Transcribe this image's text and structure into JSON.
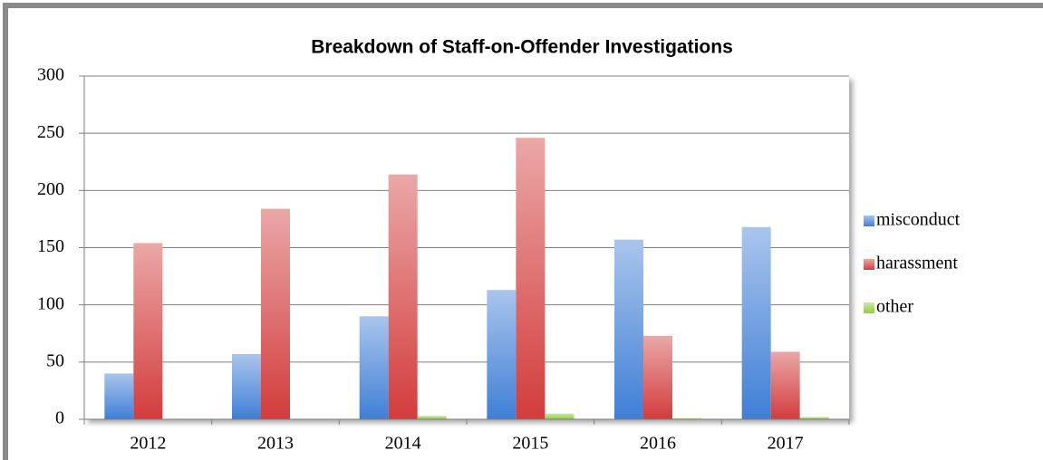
{
  "chart_data": {
    "type": "bar",
    "title": "Breakdown of Staff-on-Offender Investigations",
    "categories": [
      "2012",
      "2013",
      "2014",
      "2015",
      "2016",
      "2017"
    ],
    "series": [
      {
        "name": "misconduct",
        "color": "#3f7fd6",
        "values": [
          40,
          57,
          90,
          113,
          157,
          168
        ]
      },
      {
        "name": "harassment",
        "color": "#d33c3c",
        "values": [
          154,
          184,
          214,
          246,
          73,
          59
        ]
      },
      {
        "name": "other",
        "color": "#8fcf3a",
        "values": [
          0,
          0,
          3,
          5,
          1,
          2
        ]
      }
    ],
    "ylim": [
      0,
      300
    ],
    "yticks": [
      0,
      50,
      100,
      150,
      200,
      250,
      300
    ],
    "grid": true,
    "legend": "right"
  }
}
